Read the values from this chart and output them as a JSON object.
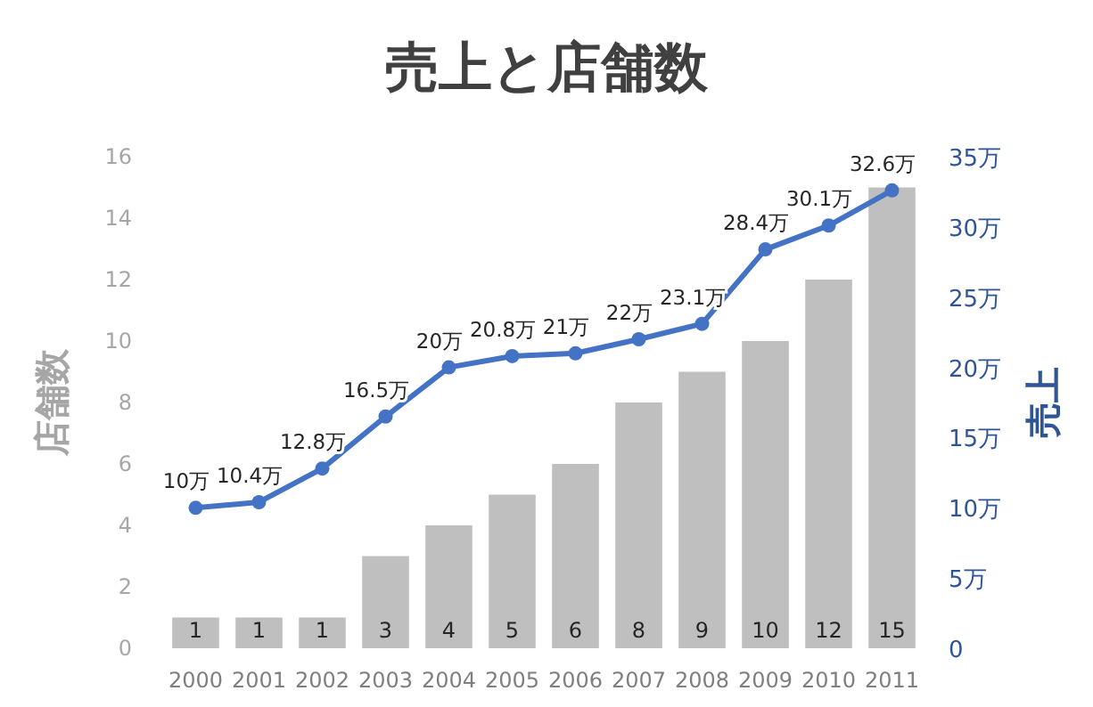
{
  "chart_data": {
    "type": "bar",
    "title": "売上と店舗数",
    "ylabel": "店舗数",
    "y2label": "売上",
    "categories": [
      "2000",
      "2001",
      "2002",
      "2003",
      "2004",
      "2005",
      "2006",
      "2007",
      "2008",
      "2009",
      "2010",
      "2011"
    ],
    "ylim": [
      0,
      16
    ],
    "yticks": [
      0,
      2,
      4,
      6,
      8,
      10,
      12,
      14,
      16
    ],
    "y2lim": [
      0,
      35
    ],
    "y2ticks": [
      0,
      {
        "value": 5,
        "label": "5万"
      },
      {
        "value": 10,
        "label": "10万"
      },
      {
        "value": 15,
        "label": "15万"
      },
      {
        "value": 20,
        "label": "20万"
      },
      {
        "value": 25,
        "label": "25万"
      },
      {
        "value": 30,
        "label": "30万"
      },
      {
        "value": 35,
        "label": "35万"
      }
    ],
    "marker": "circle",
    "series": [
      {
        "color": "#bfbfbf",
        "values": [
          1,
          1,
          1,
          3,
          4,
          5,
          6,
          8,
          9,
          10,
          12,
          15
        ],
        "value_labels": [
          "1",
          "1",
          "1",
          "3",
          "4",
          "5",
          "6",
          "8",
          "9",
          "10",
          "12",
          "15"
        ]
      },
      {
        "type": "line",
        "axis": "y2",
        "color": "#4472c4",
        "values": [
          10,
          10.4,
          12.8,
          16.5,
          20,
          20.8,
          21,
          22,
          23.1,
          28.4,
          30.1,
          32.6
        ],
        "value_labels": [
          "10万",
          "10.4万",
          "12.8万",
          "16.5万",
          "20万",
          "20.8万",
          "21万",
          "22万",
          "23.1万",
          "28.4万",
          "30.1万",
          "32.6万"
        ]
      }
    ]
  }
}
